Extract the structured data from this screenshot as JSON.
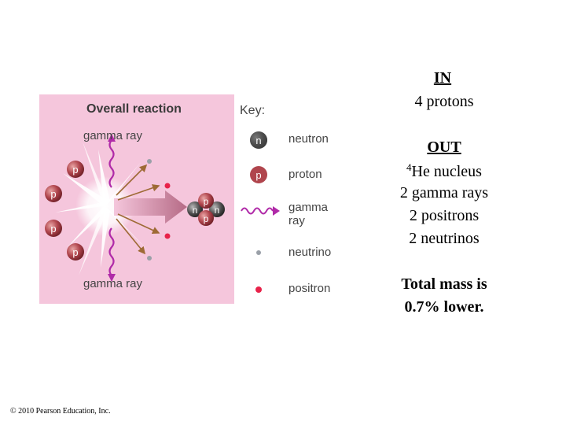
{
  "figure": {
    "title": "Overall reaction",
    "gamma_top": "gamma ray",
    "gamma_bottom": "gamma ray",
    "input_proton_label": "p",
    "output_nucleus_labels": [
      "p",
      "n",
      "n",
      "p"
    ]
  },
  "key": {
    "title": "Key:",
    "items": [
      {
        "symbol": "n",
        "label": "neutron"
      },
      {
        "symbol": "p",
        "label": "proton"
      },
      {
        "symbol": "",
        "label": "gamma ray"
      },
      {
        "symbol": "",
        "label": "neutrino"
      },
      {
        "symbol": "",
        "label": "positron"
      }
    ]
  },
  "summary": {
    "in_heading": "IN",
    "in_items": [
      "4 protons"
    ],
    "out_heading": "OUT",
    "out_he_sup": "4",
    "out_he_text": "He nucleus",
    "out_items": [
      "2 gamma rays",
      "2 positrons",
      "2 neutrinos"
    ],
    "total_line1": "Total mass is",
    "total_line2": "0.7% lower."
  },
  "copyright": "© 2010 Pearson Education, Inc.",
  "colors": {
    "figure_bg": "#f5c6dc",
    "particle": "#b0454d",
    "neutron": "#4d4d4d",
    "gamma": "#b02aa8",
    "arrow": "#9e6a35",
    "positron": "#e8224a"
  }
}
